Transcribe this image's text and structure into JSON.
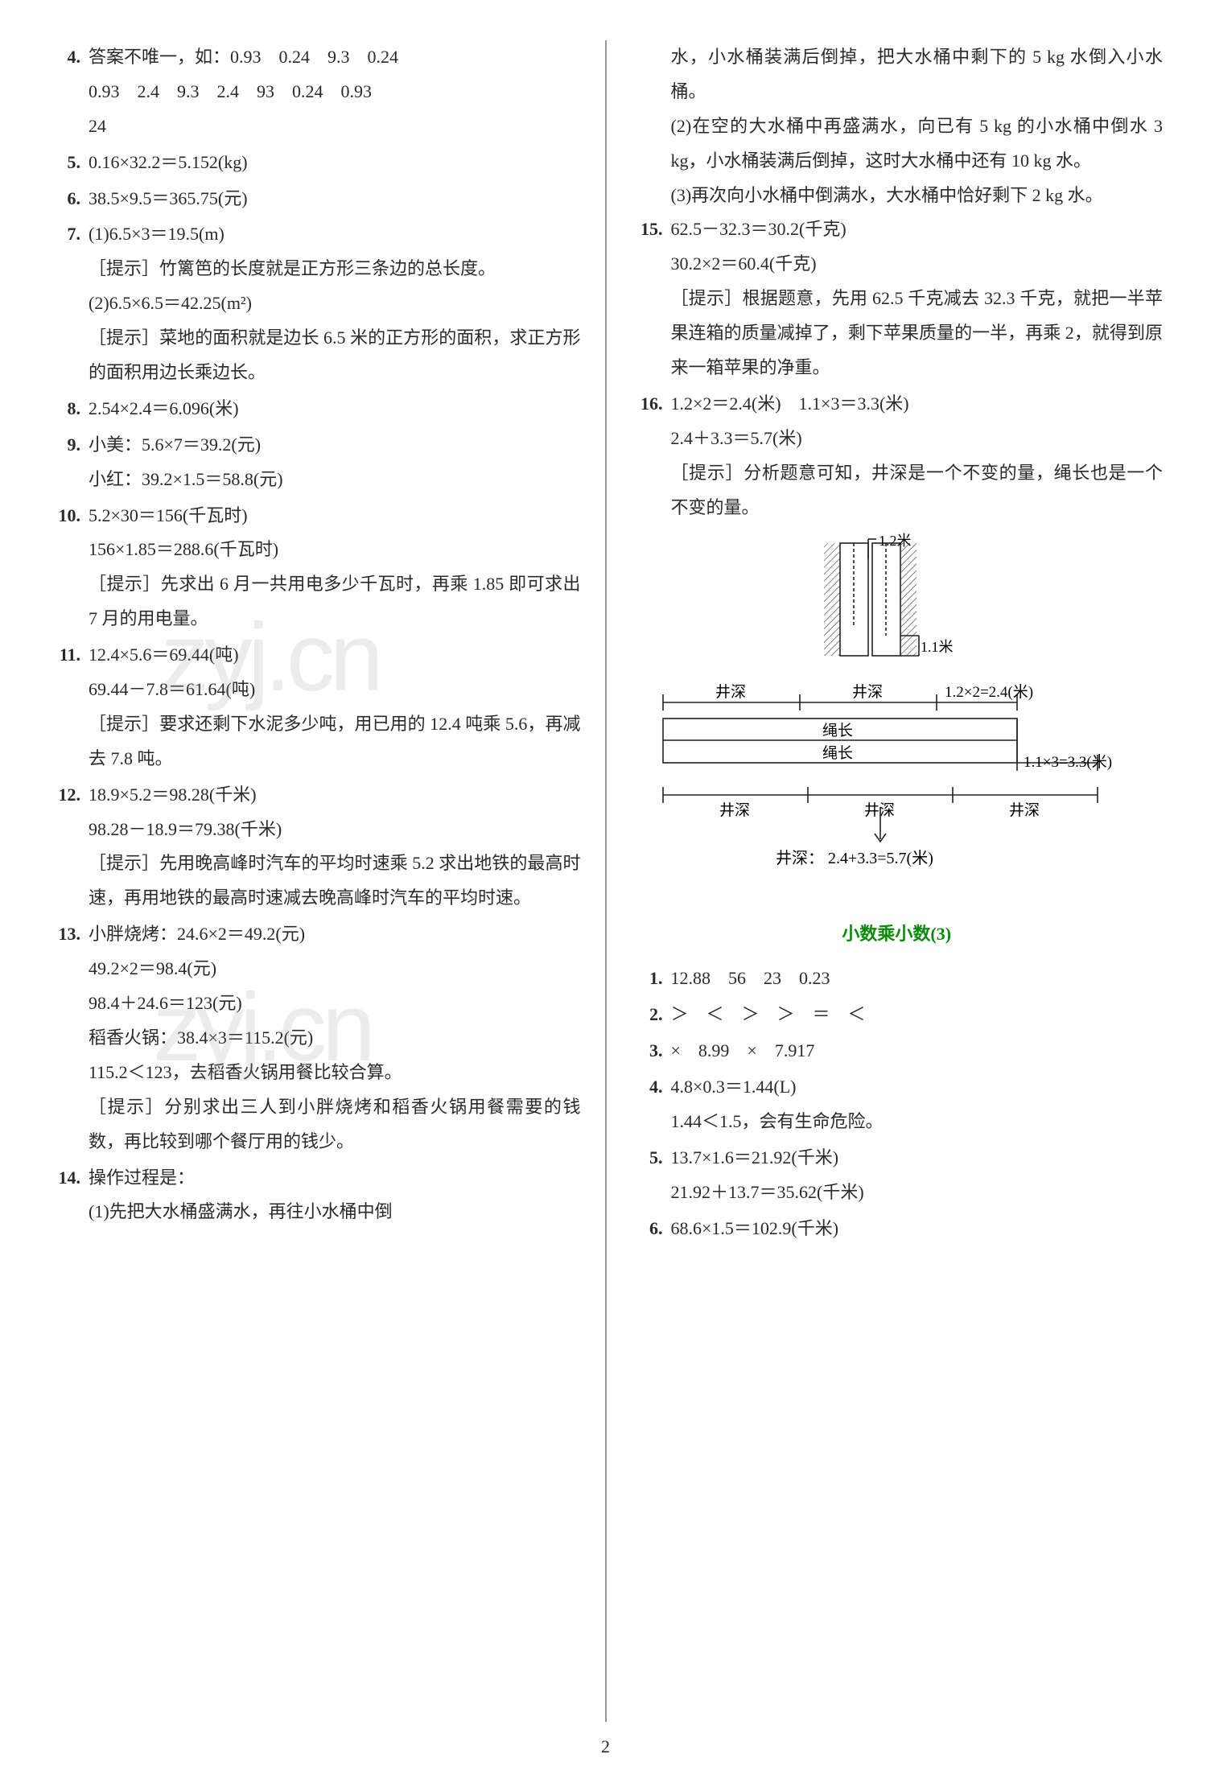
{
  "page_number": "2",
  "left": {
    "items": [
      {
        "num": "4.",
        "lines": [
          "答案不唯一，如：0.93　0.24　9.3　0.24",
          "0.93　2.4　9.3　2.4　93　0.24　0.93",
          "24"
        ]
      },
      {
        "num": "5.",
        "lines": [
          "0.16×32.2＝5.152(kg)"
        ]
      },
      {
        "num": "6.",
        "lines": [
          "38.5×9.5＝365.75(元)"
        ]
      },
      {
        "num": "7.",
        "lines": [
          "(1)6.5×3＝19.5(m)",
          "［提示］竹篱笆的长度就是正方形三条边的总长度。",
          "(2)6.5×6.5＝42.25(m²)",
          "［提示］菜地的面积就是边长 6.5 米的正方形的面积，求正方形的面积用边长乘边长。"
        ]
      },
      {
        "num": "8.",
        "lines": [
          "2.54×2.4＝6.096(米)"
        ]
      },
      {
        "num": "9.",
        "lines": [
          "小美：5.6×7＝39.2(元)",
          "小红：39.2×1.5＝58.8(元)"
        ]
      },
      {
        "num": "10.",
        "lines": [
          "5.2×30＝156(千瓦时)",
          "156×1.85＝288.6(千瓦时)",
          "［提示］先求出 6 月一共用电多少千瓦时，再乘 1.85 即可求出 7 月的用电量。"
        ]
      },
      {
        "num": "11.",
        "lines": [
          "12.4×5.6＝69.44(吨)",
          "69.44－7.8＝61.64(吨)",
          "［提示］要求还剩下水泥多少吨，用已用的 12.4 吨乘 5.6，再减去 7.8 吨。"
        ]
      },
      {
        "num": "12.",
        "lines": [
          "18.9×5.2＝98.28(千米)",
          "98.28－18.9＝79.38(千米)",
          "［提示］先用晚高峰时汽车的平均时速乘 5.2 求出地铁的最高时速，再用地铁的最高时速减去晚高峰时汽车的平均时速。"
        ]
      },
      {
        "num": "13.",
        "lines": [
          "小胖烧烤：24.6×2＝49.2(元)",
          "49.2×2＝98.4(元)",
          "98.4＋24.6＝123(元)",
          "稻香火锅：38.4×3＝115.2(元)",
          "115.2＜123，去稻香火锅用餐比较合算。",
          "［提示］分别求出三人到小胖烧烤和稻香火锅用餐需要的钱数，再比较到哪个餐厅用的钱少。"
        ]
      },
      {
        "num": "14.",
        "lines": [
          "操作过程是：",
          "(1)先把大水桶盛满水，再往小水桶中倒"
        ]
      }
    ]
  },
  "right": {
    "prelude": [
      "水，小水桶装满后倒掉，把大水桶中剩下的 5 kg 水倒入小水桶。",
      "(2)在空的大水桶中再盛满水，向已有 5 kg 的小水桶中倒水 3 kg，小水桶装满后倒掉，这时大水桶中还有 10 kg 水。",
      "(3)再次向小水桶中倒满水，大水桶中恰好剩下 2 kg 水。"
    ],
    "items": [
      {
        "num": "15.",
        "lines": [
          "62.5－32.3＝30.2(千克)",
          "30.2×2＝60.4(千克)",
          "［提示］根据题意，先用 62.5 千克减去 32.3 千克，就把一半苹果连箱的质量减掉了，剩下苹果质量的一半，再乘 2，就得到原来一箱苹果的净重。"
        ]
      },
      {
        "num": "16.",
        "lines": [
          "1.2×2＝2.4(米)　1.1×3＝3.3(米)",
          "2.4＋3.3＝5.7(米)",
          "［提示］分析题意可知，井深是一个不变的量，绳长也是一个不变的量。"
        ]
      }
    ],
    "diagram1": {
      "label_top": "1.2米",
      "label_bottom": "1.1米"
    },
    "diagram2": {
      "top_left": "井深",
      "top_mid": "井深",
      "top_right": "1.2×2=2.4(米)",
      "rope": "绳长",
      "bot_l1": "井深",
      "bot_l2": "井深",
      "bot_l3": "井深",
      "bot_right": "1.1×3=3.3(米)",
      "result": "井深： 2.4+3.3=5.7(米)"
    },
    "section_title": "小数乘小数(3)",
    "section_items": [
      {
        "num": "1.",
        "lines": [
          "12.88　56　23　0.23"
        ]
      },
      {
        "num": "2.",
        "lines": [
          "＞　＜　＞　＞　＝　＜"
        ]
      },
      {
        "num": "3.",
        "lines": [
          "×　8.99　×　7.917"
        ]
      },
      {
        "num": "4.",
        "lines": [
          "4.8×0.3＝1.44(L)",
          "1.44＜1.5，会有生命危险。"
        ]
      },
      {
        "num": "5.",
        "lines": [
          "13.7×1.6＝21.92(千米)",
          "21.92＋13.7＝35.62(千米)"
        ]
      },
      {
        "num": "6.",
        "lines": [
          "68.6×1.5＝102.9(千米)"
        ]
      }
    ]
  },
  "watermark": "zyj.cn"
}
